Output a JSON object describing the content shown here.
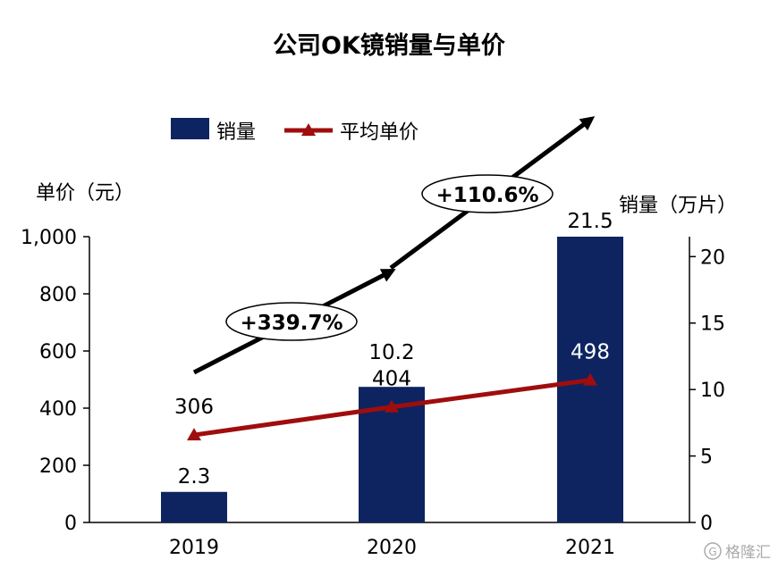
{
  "chart_data": {
    "type": "bar+line",
    "title": "公司OK镜销量与单价",
    "categories": [
      "2019",
      "2020",
      "2021"
    ],
    "series": [
      {
        "name": "销量",
        "type": "bar",
        "axis": "right",
        "values": [
          2.3,
          10.2,
          21.5
        ],
        "labels": [
          "2.3",
          "10.2",
          "21.5"
        ],
        "color": "#0d2461"
      },
      {
        "name": "平均单价",
        "type": "line",
        "axis": "left",
        "values": [
          306,
          404,
          498
        ],
        "labels": [
          "306",
          "404",
          "498"
        ],
        "color": "#a00d0d"
      }
    ],
    "left_axis": {
      "label": "单价（元）",
      "range": [
        0,
        1000
      ],
      "ticks": [
        0,
        200,
        400,
        600,
        800,
        1000
      ],
      "tick_labels": [
        "0",
        "200",
        "400",
        "600",
        "800",
        "1,000"
      ]
    },
    "right_axis": {
      "label": "销量（万片）",
      "range": [
        0,
        21.5
      ],
      "ticks": [
        0,
        5,
        10,
        15,
        20
      ],
      "tick_labels": [
        "0",
        "5",
        "10",
        "15",
        "20"
      ]
    },
    "growth_annotations": [
      {
        "text": "+339.7%",
        "from": "2019",
        "to": "2020"
      },
      {
        "text": "+110.6%",
        "from": "2020",
        "to": "2021"
      }
    ],
    "legend": {
      "placement": "top"
    },
    "grid": false
  },
  "watermark": {
    "text": "格隆汇"
  }
}
